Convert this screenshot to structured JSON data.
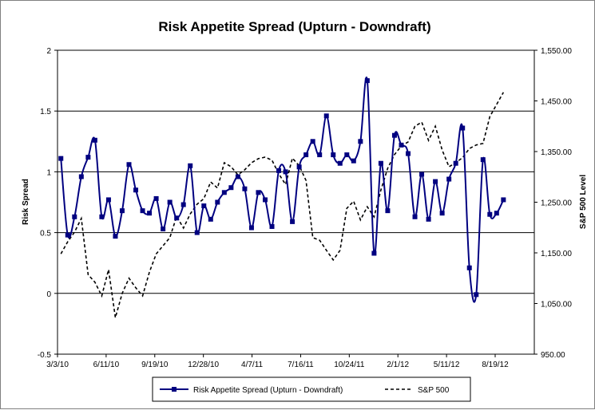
{
  "chart_data": {
    "type": "line",
    "title": "Risk Appetite Spread (Upturn - Downdraft)",
    "ylabel": "Risk Spread",
    "y2label": "S&P 500 Level",
    "xlabel": "",
    "ylim": [
      -0.5,
      2
    ],
    "y2lim": [
      950,
      1550
    ],
    "yticks": [
      "-0.5",
      "0",
      "0.5",
      "1",
      "1.5",
      "2"
    ],
    "y2ticks": [
      "950.00",
      "1,050.00",
      "1,150.00",
      "1,250.00",
      "1,350.00",
      "1,450.00",
      "1,550.00"
    ],
    "xticks": [
      "3/3/10",
      "6/11/10",
      "9/19/10",
      "12/28/10",
      "4/7/11",
      "7/16/11",
      "10/24/11",
      "2/1/12",
      "5/11/12",
      "8/19/12"
    ],
    "grid": "horizontal",
    "legend": "bottom",
    "x": [
      "3/10/10",
      "3/24/10",
      "4/7/10",
      "4/21/10",
      "5/5/10",
      "5/19/10",
      "6/2/10",
      "6/16/10",
      "6/30/10",
      "7/14/10",
      "7/28/10",
      "8/11/10",
      "8/25/10",
      "9/8/10",
      "9/22/10",
      "10/6/10",
      "10/20/10",
      "11/3/10",
      "11/17/10",
      "12/1/10",
      "12/15/10",
      "12/29/10",
      "1/12/11",
      "1/26/11",
      "2/9/11",
      "2/23/11",
      "3/9/11",
      "3/23/11",
      "4/6/11",
      "4/20/11",
      "5/4/11",
      "5/18/11",
      "6/1/11",
      "6/15/11",
      "6/29/11",
      "7/13/11",
      "7/27/11",
      "8/10/11",
      "8/24/11",
      "9/7/11",
      "9/21/11",
      "10/5/11",
      "10/19/11",
      "11/2/11",
      "11/16/11",
      "11/30/11",
      "12/14/11",
      "12/28/11",
      "1/11/12",
      "1/25/12",
      "2/8/12",
      "2/22/12",
      "3/7/12",
      "3/21/12",
      "4/4/12",
      "4/18/12",
      "5/2/12",
      "5/16/12",
      "5/30/12",
      "6/13/12",
      "6/27/12",
      "7/11/12",
      "7/25/12",
      "8/8/12",
      "8/22/12",
      "9/5/12"
    ],
    "series": [
      {
        "name": "Risk Appetite Spread (Upturn - Downdraft)",
        "axis": "left",
        "color": "#000080",
        "marker": "square",
        "values": [
          1.11,
          0.48,
          0.63,
          0.96,
          1.12,
          1.26,
          0.63,
          0.77,
          0.47,
          0.68,
          1.06,
          0.85,
          0.68,
          0.66,
          0.78,
          0.53,
          0.75,
          0.62,
          0.73,
          1.05,
          0.5,
          0.72,
          0.61,
          0.75,
          0.83,
          0.87,
          0.96,
          0.86,
          0.54,
          0.83,
          0.77,
          0.55,
          1.01,
          1.0,
          0.59,
          1.04,
          1.14,
          1.25,
          1.14,
          1.46,
          1.14,
          1.07,
          1.14,
          1.09,
          1.25,
          1.75,
          0.33,
          1.07,
          0.68,
          1.3,
          1.22,
          1.15,
          0.63,
          0.98,
          0.61,
          0.92,
          0.66,
          0.94,
          1.07,
          1.36,
          0.21,
          -0.01,
          1.1,
          0.65,
          0.66,
          0.77
        ]
      },
      {
        "name": "S&P 500",
        "axis": "right",
        "color": "#000000",
        "dash": "dashed",
        "values": [
          1148,
          1172,
          1191,
          1218,
          1107,
          1092,
          1065,
          1117,
          1022,
          1070,
          1100,
          1081,
          1065,
          1112,
          1148,
          1164,
          1180,
          1222,
          1199,
          1227,
          1246,
          1257,
          1290,
          1278,
          1328,
          1320,
          1304,
          1314,
          1328,
          1336,
          1339,
          1333,
          1306,
          1285,
          1337,
          1322,
          1293,
          1180,
          1175,
          1155,
          1136,
          1155,
          1238,
          1252,
          1215,
          1241,
          1221,
          1274,
          1317,
          1344,
          1361,
          1369,
          1400,
          1408,
          1372,
          1400,
          1353,
          1320,
          1328,
          1338,
          1356,
          1363,
          1366,
          1419,
          1443,
          1467
        ]
      }
    ]
  }
}
